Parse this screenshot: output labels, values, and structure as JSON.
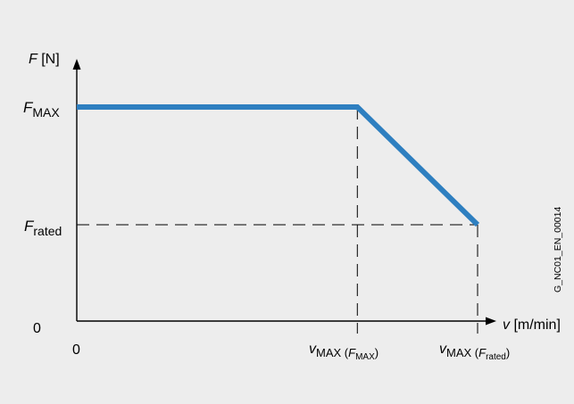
{
  "chart_data": {
    "type": "line",
    "title": "",
    "axes": {
      "y_label_symbol": "F",
      "y_label_unit": " [N]",
      "x_label_symbol": "v",
      "x_label_unit": " [m/min]"
    },
    "y_ticks": {
      "fmax": {
        "symbol": "F",
        "sub": "MAX"
      },
      "frated": {
        "symbol": "F",
        "sub": "rated"
      },
      "zero": "0"
    },
    "x_ticks": {
      "zero": "0",
      "vmax_fmax": {
        "symbol": "v",
        "sub": "MAX",
        "paren_open": " (",
        "paren_symbol": "F",
        "paren_sub": "MAX",
        "paren_close": ")"
      },
      "vmax_frated": {
        "symbol": "v",
        "sub": "MAX",
        "paren_open": " (",
        "paren_symbol": "F",
        "paren_sub": "rated",
        "paren_close": ")"
      }
    },
    "series": [
      {
        "name": "",
        "color": "#2e7fc0",
        "points": [
          {
            "x": 0,
            "y": 1.0
          },
          {
            "x": 0.7,
            "y": 1.0
          },
          {
            "x": 1.0,
            "y": 0.45
          }
        ]
      }
    ],
    "xlim": [
      0,
      1.0
    ],
    "ylim": [
      0,
      1.0
    ],
    "grid": false,
    "ref_color": "#000000",
    "axis_color": "#000000",
    "dashed_reference_lines": true
  },
  "side_code": "G_NC01_EN_00014"
}
